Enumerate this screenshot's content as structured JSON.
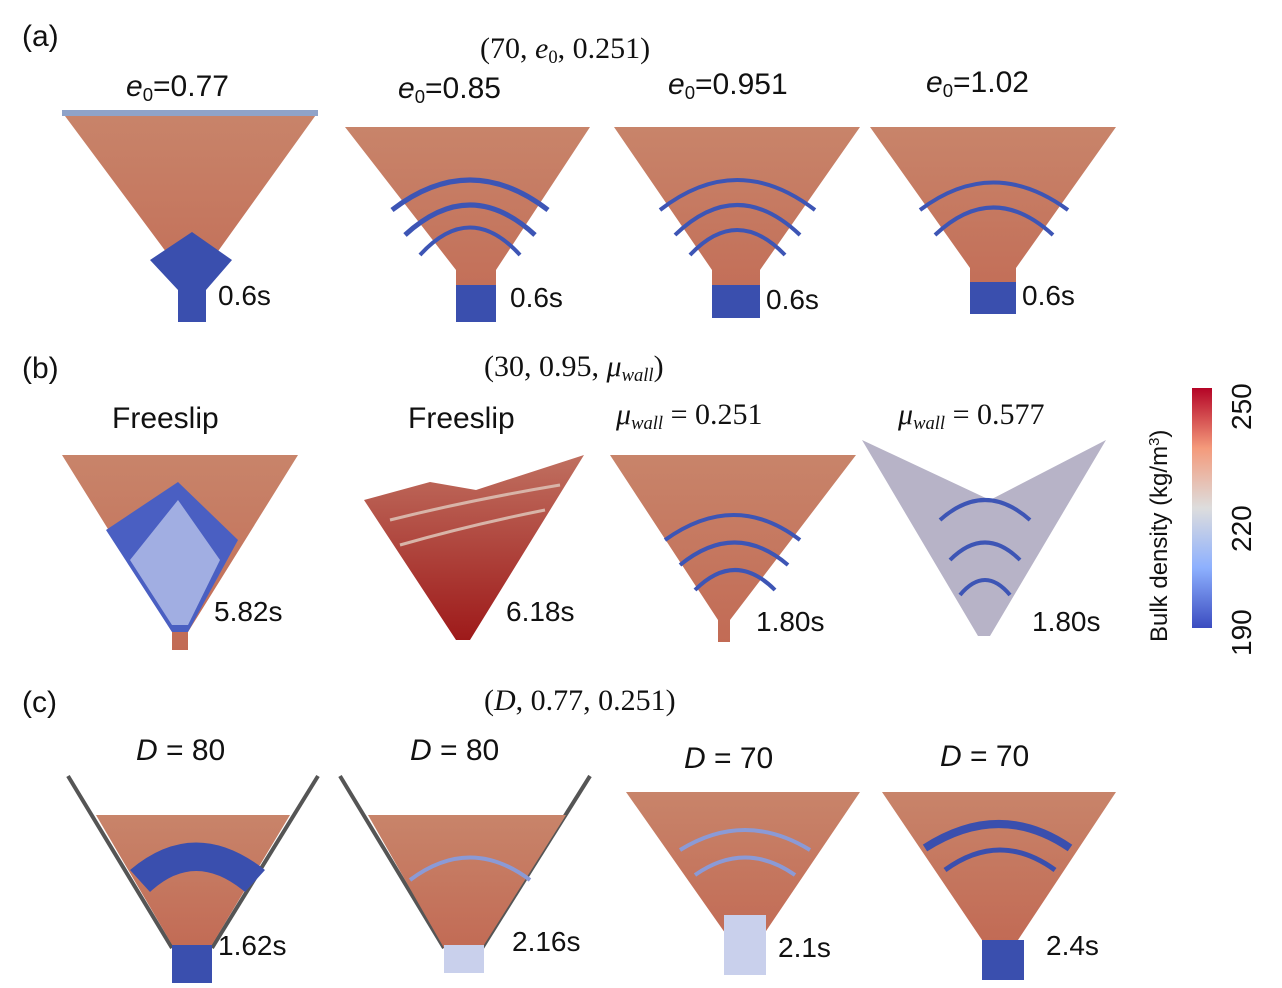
{
  "rows": [
    {
      "label": "(a)",
      "params_prefix": "(70, ",
      "params_var": "e",
      "params_var_sub": "0",
      "params_suffix": ", 0.251)",
      "panels": [
        {
          "title_var": "e",
          "title_sub": "0",
          "title_rest": "=0.77",
          "time": "0.6s"
        },
        {
          "title_var": "e",
          "title_sub": "0",
          "title_rest": "=0.85",
          "time": "0.6s"
        },
        {
          "title_var": "e",
          "title_sub": "0",
          "title_rest": "=0.951",
          "time": "0.6s"
        },
        {
          "title_var": "e",
          "title_sub": "0",
          "title_rest": "=1.02",
          "time": "0.6s"
        }
      ]
    },
    {
      "label": "(b)",
      "params_prefix": "(30, 0.95, ",
      "params_var": "μ",
      "params_var_sub": "wall",
      "params_suffix": ")",
      "panels": [
        {
          "title": "Freeslip",
          "time": "5.82s"
        },
        {
          "title": "Freeslip",
          "time": "6.18s"
        },
        {
          "title_var": "μ",
          "title_sub": "wall",
          "title_rest": " = 0.251",
          "time": "1.80s"
        },
        {
          "title_var": "μ",
          "title_sub": "wall",
          "title_rest": " = 0.577",
          "time": "1.80s"
        }
      ]
    },
    {
      "label": "(c)",
      "params_prefix": "(",
      "params_var": "D",
      "params_suffix": ", 0.77, 0.251)",
      "panels": [
        {
          "title_var": "D",
          "title_rest": " = 80",
          "time": "1.62s"
        },
        {
          "title_var": "D",
          "title_rest": " = 80",
          "time": "2.16s"
        },
        {
          "title_var": "D",
          "title_rest": " = 70",
          "time": "2.1s"
        },
        {
          "title_var": "D",
          "title_rest": " = 70",
          "time": "2.4s"
        }
      ]
    }
  ],
  "colorbar": {
    "title_main": "Bulk density (kg/m",
    "title_sup": "3",
    "title_close": ")",
    "ticks": [
      "190",
      "220",
      "250"
    ],
    "colors": {
      "low": "#3b4cc0",
      "mid": "#dddddd",
      "high": "#b40426"
    }
  }
}
